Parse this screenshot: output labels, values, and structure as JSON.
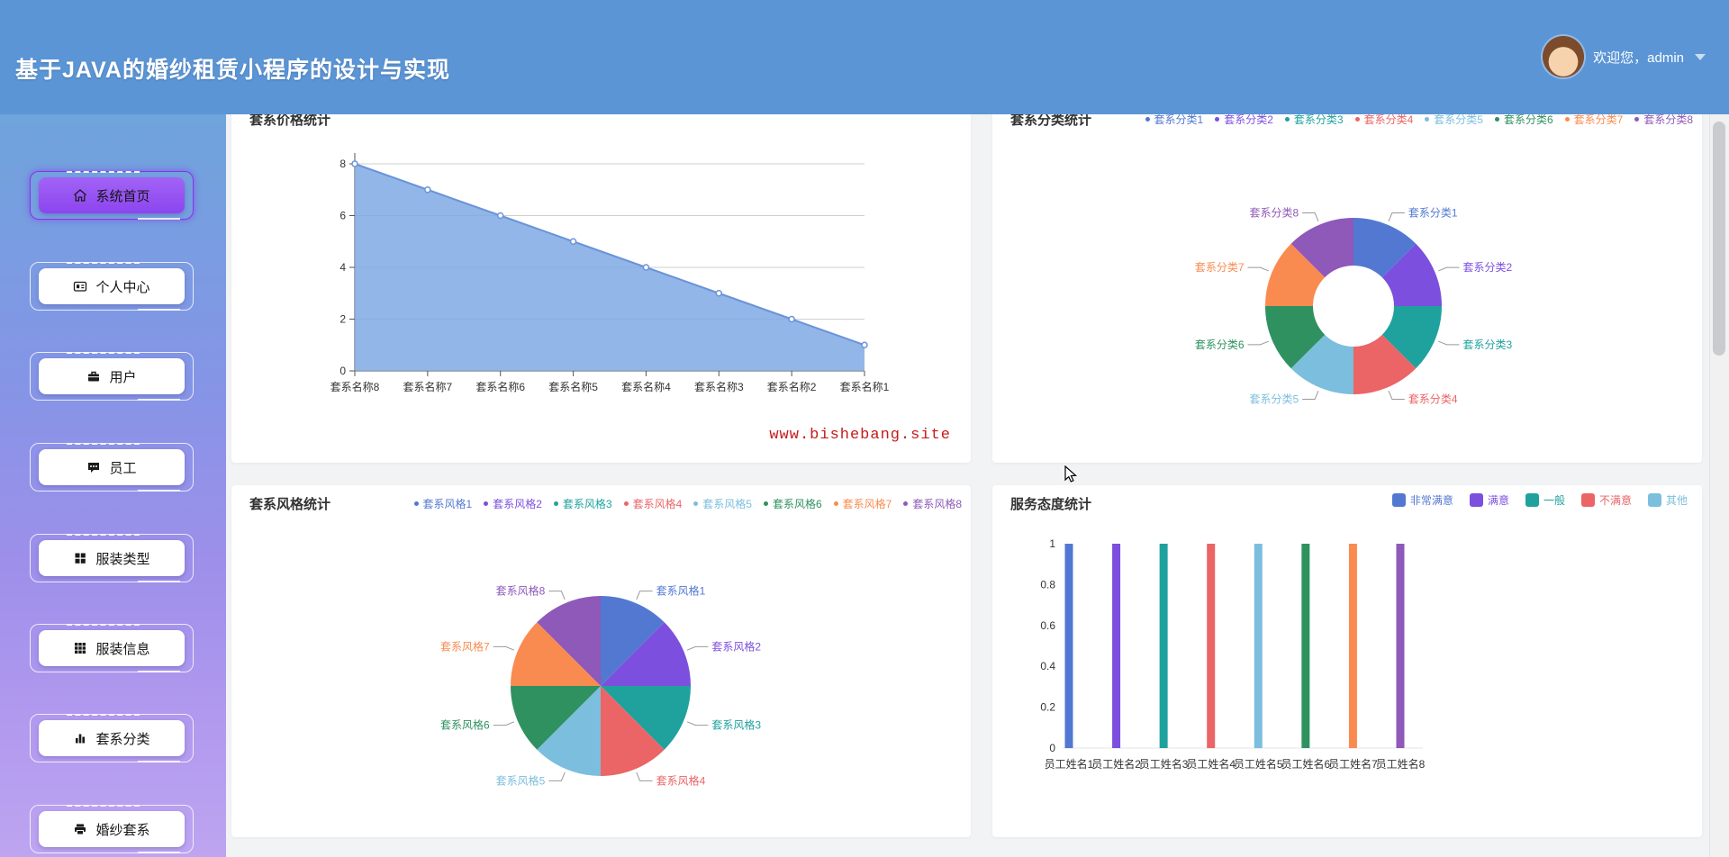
{
  "header": {
    "title": "基于JAVA的婚纱租赁小程序的设计与实现",
    "welcome": "欢迎您，admin"
  },
  "sidebar": {
    "items": [
      {
        "label": "系统首页",
        "icon": "home-icon",
        "active": true
      },
      {
        "label": "个人中心",
        "icon": "idcard-icon",
        "active": false
      },
      {
        "label": "用户",
        "icon": "briefcase-icon",
        "active": false
      },
      {
        "label": "员工",
        "icon": "chat-icon",
        "active": false
      },
      {
        "label": "服装类型",
        "icon": "grid2-icon",
        "active": false
      },
      {
        "label": "服装信息",
        "icon": "grid3-icon",
        "active": false
      },
      {
        "label": "套系分类",
        "icon": "barchart-icon",
        "active": false
      },
      {
        "label": "婚纱套系",
        "icon": "printer-icon",
        "active": false
      }
    ]
  },
  "colors": {
    "palette": [
      "#5378D2",
      "#7C4FDF",
      "#1FA29E",
      "#EB6466",
      "#7CBEDD",
      "#2F9160",
      "#FA8B50",
      "#8E59B8"
    ],
    "header_blue": "#5B95D6",
    "active_purple": "#8C45EF",
    "watermark_red": "#C61A1A"
  },
  "chart_data": [
    {
      "id": "price",
      "type": "area",
      "title": "套系价格统计",
      "categories": [
        "套系名称8",
        "套系名称7",
        "套系名称6",
        "套系名称5",
        "套系名称4",
        "套系名称3",
        "套系名称2",
        "套系名称1"
      ],
      "values": [
        8,
        7,
        6,
        5,
        4,
        3,
        2,
        1
      ],
      "yticks": [
        0,
        2,
        4,
        6,
        8
      ],
      "ylim": [
        0,
        8
      ],
      "line_color": "#6A93DB",
      "fill_color": "#7FA9E3",
      "grid": true,
      "watermark": "www.bishebang.site"
    },
    {
      "id": "category",
      "type": "donut",
      "title": "套系分类统计",
      "labels": [
        "套系分类1",
        "套系分类2",
        "套系分类3",
        "套系分类4",
        "套系分类5",
        "套系分类6",
        "套系分类7",
        "套系分类8"
      ],
      "values": [
        1,
        1,
        1,
        1,
        1,
        1,
        1,
        1
      ],
      "legend_position": "top-right"
    },
    {
      "id": "style",
      "type": "pie",
      "title": "套系风格统计",
      "labels": [
        "套系风格1",
        "套系风格2",
        "套系风格3",
        "套系风格4",
        "套系风格5",
        "套系风格6",
        "套系风格7",
        "套系风格8"
      ],
      "values": [
        1,
        1,
        1,
        1,
        1,
        1,
        1,
        1
      ],
      "legend_position": "top-right"
    },
    {
      "id": "service",
      "type": "bar",
      "title": "服务态度统计",
      "categories": [
        "员工姓名1",
        "员工姓名2",
        "员工姓名3",
        "员工姓名4",
        "员工姓名5",
        "员工姓名6",
        "员工姓名7",
        "员工姓名8"
      ],
      "values": [
        1,
        1,
        1,
        1,
        1,
        1,
        1,
        1
      ],
      "yticks": [
        0,
        0.2,
        0.4,
        0.6,
        0.8,
        1
      ],
      "ylim": [
        0,
        1
      ],
      "legend": [
        "非常满意",
        "满意",
        "一般",
        "不满意",
        "其他"
      ],
      "legend_position": "top-right"
    }
  ]
}
